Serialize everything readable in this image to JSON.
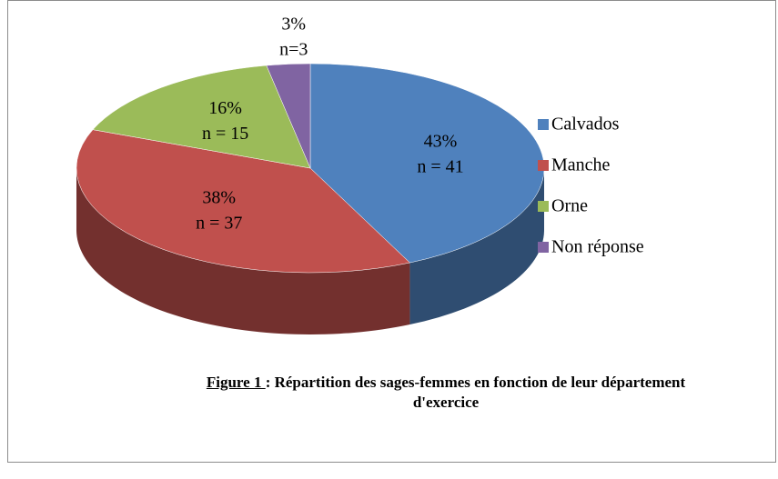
{
  "chart_data": {
    "type": "pie",
    "categories": [
      "Calvados",
      "Manche",
      "Orne",
      "Non réponse"
    ],
    "values": [
      43,
      38,
      16,
      3
    ],
    "value_labels": [
      "43%",
      "38%",
      "16%",
      "3%"
    ],
    "n_labels": [
      "n = 41",
      "n = 37",
      "n = 15",
      "n=3"
    ],
    "colors": [
      "#4f81bd",
      "#c0504d",
      "#9bbb59",
      "#8064a2"
    ],
    "legend": "right",
    "figure_label": "Figure 1 ",
    "title": ": Répartition des sages-femmes en fonction de leur département d'exercice"
  }
}
